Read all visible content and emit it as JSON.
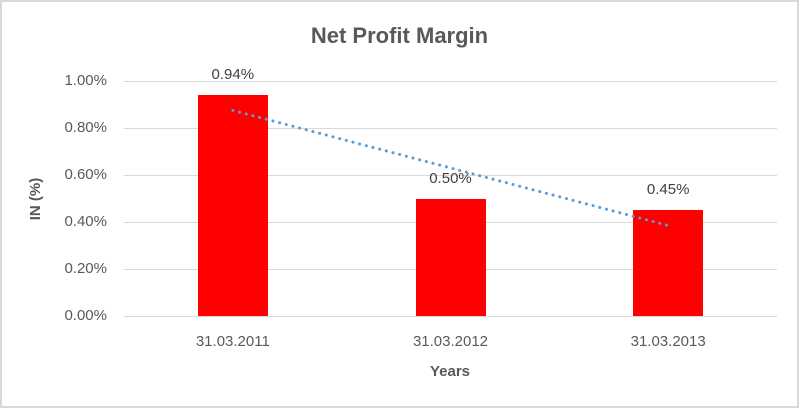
{
  "frame": {
    "background": "#FFFFFF",
    "border_color": "#D9D9D9"
  },
  "chart_data": {
    "type": "bar",
    "title": "Net Profit Margin",
    "xlabel": "Years",
    "ylabel": "IN (%)",
    "categories": [
      "31.03.2011",
      "31.03.2012",
      "31.03.2013"
    ],
    "values": [
      0.94,
      0.5,
      0.45
    ],
    "data_labels": [
      "0.94%",
      "0.50%",
      "0.45%"
    ],
    "ylim": [
      0,
      1.0
    ],
    "ytick_values": [
      0,
      0.2,
      0.4,
      0.6,
      0.8,
      1.0
    ],
    "ytick_labels": [
      "0.00%",
      "0.20%",
      "0.40%",
      "0.60%",
      "0.80%",
      "1.00%"
    ],
    "grid": true,
    "legend": "none",
    "bar_color": "#FF0000",
    "trendline": {
      "type": "linear",
      "style": "dotted",
      "color": "#5B9BD5",
      "start_value": 0.875,
      "end_value": 0.385
    },
    "axis_text_color": "#595959",
    "data_label_color": "#404040",
    "gridline_color": "#D9D9D9"
  }
}
